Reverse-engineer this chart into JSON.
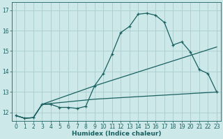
{
  "xlabel": "Humidex (Indice chaleur)",
  "background_color": "#cce8e8",
  "grid_color": "#aacccc",
  "line_color": "#1a6060",
  "xlim": [
    -0.5,
    23.5
  ],
  "ylim": [
    11.6,
    17.4
  ],
  "xticks": [
    0,
    1,
    2,
    3,
    4,
    5,
    6,
    7,
    8,
    9,
    10,
    11,
    12,
    13,
    14,
    15,
    16,
    17,
    18,
    19,
    20,
    21,
    22,
    23
  ],
  "yticks": [
    12,
    13,
    14,
    15,
    16,
    17
  ],
  "line1_x": [
    0,
    1,
    2,
    3,
    4,
    5,
    6,
    7,
    8,
    9,
    10,
    11,
    12,
    13,
    14,
    15,
    16,
    17,
    18,
    19,
    20,
    21,
    22,
    23
  ],
  "line1_y": [
    11.85,
    11.72,
    11.75,
    12.4,
    12.4,
    12.25,
    12.25,
    12.2,
    12.3,
    13.3,
    13.9,
    14.85,
    15.9,
    16.2,
    16.8,
    16.85,
    16.75,
    16.4,
    15.3,
    15.45,
    14.95,
    14.1,
    13.9,
    13.0
  ],
  "line2_x": [
    0,
    1,
    2,
    3,
    9,
    23
  ],
  "line2_y": [
    11.85,
    11.72,
    11.75,
    12.4,
    13.3,
    15.2
  ],
  "line3_x": [
    0,
    1,
    2,
    3,
    9,
    23
  ],
  "line3_y": [
    11.85,
    11.72,
    11.75,
    12.4,
    12.65,
    13.0
  ]
}
